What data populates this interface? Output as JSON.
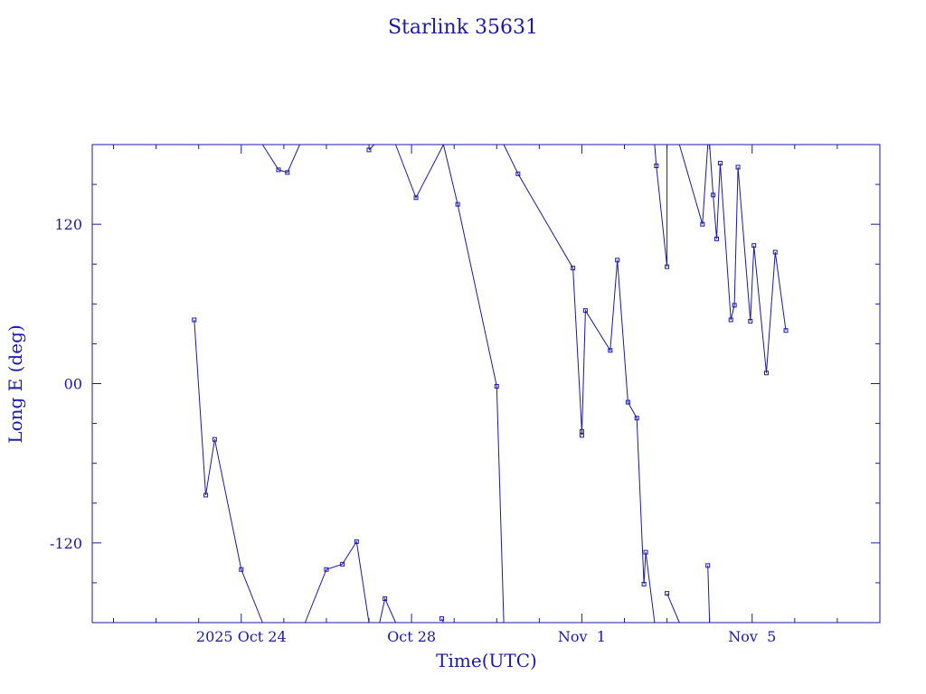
{
  "chart_data": {
    "type": "line",
    "title": "Starlink 35631",
    "xlabel": "Time(UTC)",
    "ylabel": "Long E (deg)",
    "x_is_date": true,
    "xlim": [
      "2025-10-20 12:00",
      "2025-11-08 00:00"
    ],
    "ylim": [
      -180,
      180
    ],
    "x_ticks": [
      {
        "label": "2025 Oct 24",
        "value": "2025-10-24 00:00"
      },
      {
        "label": "Oct 28",
        "value": "2025-10-28 00:00"
      },
      {
        "label": "Nov  1",
        "value": "2025-11-01 00:00"
      },
      {
        "label": "Nov  5",
        "value": "2025-11-05 00:00"
      }
    ],
    "y_ticks": [
      {
        "label": "120",
        "value": 120
      },
      {
        "label": "00",
        "value": 0
      },
      {
        "label": "-120",
        "value": -120
      }
    ],
    "color": "#1a1aa6",
    "series": [
      {
        "points": [
          [
            "2025-10-22 21:30",
            48
          ],
          [
            "2025-10-23 04:00",
            -84
          ],
          [
            "2025-10-23 09:00",
            -42
          ],
          [
            "2025-10-24 00:00",
            -140
          ],
          [
            "2025-10-24 12:00",
            -180
          ]
        ]
      },
      {
        "points": [
          [
            "2025-10-24 12:00",
            180
          ],
          [
            "2025-10-24 21:00",
            161
          ],
          [
            "2025-10-25 02:00",
            159
          ],
          [
            "2025-10-25 09:00",
            180
          ]
        ]
      },
      {
        "points": [
          [
            "2025-10-25 12:00",
            -180
          ],
          [
            "2025-10-26 00:00",
            -140
          ],
          [
            "2025-10-26 09:00",
            -136
          ],
          [
            "2025-10-26 17:00",
            -119
          ],
          [
            "2025-10-27 00:00",
            -180
          ]
        ]
      },
      {
        "points": [
          [
            "2025-10-27 00:00",
            176
          ],
          [
            "2025-10-27 03:00",
            180
          ]
        ]
      },
      {
        "points": [
          [
            "2025-10-27 06:00",
            -180
          ],
          [
            "2025-10-27 09:00",
            -162
          ],
          [
            "2025-10-27 15:00",
            -180
          ]
        ]
      },
      {
        "points": [
          [
            "2025-10-27 15:00",
            180
          ],
          [
            "2025-10-28 02:30",
            140
          ],
          [
            "2025-10-28 18:00",
            180
          ]
        ]
      },
      {
        "points": [
          [
            "2025-10-28 17:00",
            -177
          ],
          [
            "2025-10-28 18:00",
            -180
          ]
        ]
      },
      {
        "points": [
          [
            "2025-10-28 18:00",
            180
          ],
          [
            "2025-10-29 02:00",
            135
          ],
          [
            "2025-10-30 00:00",
            -2
          ],
          [
            "2025-10-30 04:00",
            -180
          ]
        ]
      },
      {
        "points": [
          [
            "2025-10-30 04:00",
            180
          ],
          [
            "2025-10-30 12:00",
            158
          ],
          [
            "2025-10-31 19:00",
            87
          ],
          [
            "2025-11-01 00:00",
            -36
          ],
          [
            "2025-11-01 00:00",
            -39
          ],
          [
            "2025-11-01 02:00",
            55
          ],
          [
            "2025-11-01 16:00",
            25
          ],
          [
            "2025-11-01 20:00",
            93
          ],
          [
            "2025-11-02 02:00",
            -14
          ],
          [
            "2025-11-02 07:00",
            -26
          ],
          [
            "2025-11-02 11:00",
            -151
          ],
          [
            "2025-11-02 12:00",
            -127
          ],
          [
            "2025-11-02 17:00",
            -180
          ]
        ]
      },
      {
        "points": [
          [
            "2025-11-02 17:00",
            180
          ],
          [
            "2025-11-02 18:00",
            164
          ],
          [
            "2025-11-03 00:00",
            88
          ],
          [
            "2025-11-03 00:00",
            180
          ]
        ]
      },
      {
        "points": [
          [
            "2025-11-03 00:00",
            -158
          ],
          [
            "2025-11-03 07:00",
            -180
          ]
        ]
      },
      {
        "points": [
          [
            "2025-11-03 07:00",
            180
          ],
          [
            "2025-11-03 20:00",
            120
          ],
          [
            "2025-11-03 23:00",
            180
          ]
        ]
      },
      {
        "points": [
          [
            "2025-11-03 23:00",
            -137
          ],
          [
            "2025-11-04 00:00",
            -180
          ]
        ]
      },
      {
        "points": [
          [
            "2025-11-04 00:00",
            180
          ],
          [
            "2025-11-04 02:00",
            142
          ],
          [
            "2025-11-04 04:00",
            109
          ],
          [
            "2025-11-04 06:00",
            166
          ],
          [
            "2025-11-04 12:00",
            48
          ],
          [
            "2025-11-04 14:00",
            59
          ],
          [
            "2025-11-04 16:00",
            163
          ],
          [
            "2025-11-04 23:00",
            47
          ],
          [
            "2025-11-05 01:00",
            104
          ],
          [
            "2025-11-05 08:00",
            8
          ],
          [
            "2025-11-05 13:00",
            99
          ],
          [
            "2025-11-05 19:00",
            40
          ]
        ]
      }
    ]
  }
}
